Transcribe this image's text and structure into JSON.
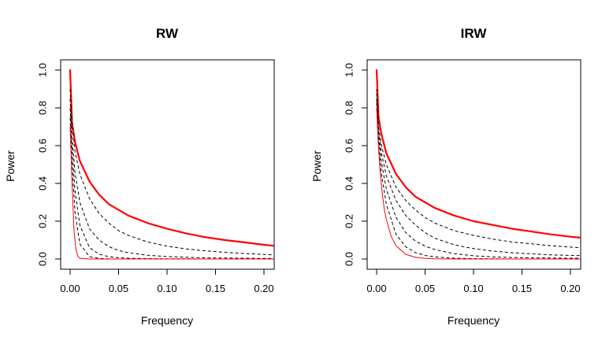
{
  "chart_data": [
    {
      "type": "line",
      "title": "RW",
      "xlabel": "Frequency",
      "ylabel": "Power",
      "xlim": [
        0,
        0.21
      ],
      "ylim": [
        0,
        1.0
      ],
      "x_ticks": [
        "0.00",
        "0.05",
        "0.10",
        "0.15",
        "0.20"
      ],
      "y_ticks": [
        "0.0",
        "0.2",
        "0.4",
        "0.6",
        "0.8",
        "1.0"
      ],
      "grid": false,
      "series": [
        {
          "color": "#ff0000",
          "line_style": "thick",
          "points": [
            [
              0.0,
              1.0
            ],
            [
              0.002,
              0.72
            ],
            [
              0.005,
              0.62
            ],
            [
              0.01,
              0.52
            ],
            [
              0.02,
              0.41
            ],
            [
              0.03,
              0.34
            ],
            [
              0.04,
              0.29
            ],
            [
              0.05,
              0.26
            ],
            [
              0.06,
              0.23
            ],
            [
              0.08,
              0.19
            ],
            [
              0.1,
              0.16
            ],
            [
              0.12,
              0.135
            ],
            [
              0.14,
              0.115
            ],
            [
              0.16,
              0.1
            ],
            [
              0.18,
              0.088
            ],
            [
              0.2,
              0.075
            ],
            [
              0.21,
              0.07
            ]
          ]
        },
        {
          "color": "#000000",
          "line_style": "dashed",
          "points": [
            [
              0.0,
              0.9
            ],
            [
              0.002,
              0.72
            ],
            [
              0.005,
              0.57
            ],
            [
              0.01,
              0.45
            ],
            [
              0.02,
              0.32
            ],
            [
              0.03,
              0.24
            ],
            [
              0.04,
              0.19
            ],
            [
              0.05,
              0.15
            ],
            [
              0.06,
              0.125
            ],
            [
              0.08,
              0.09
            ],
            [
              0.1,
              0.068
            ],
            [
              0.12,
              0.053
            ],
            [
              0.14,
              0.043
            ],
            [
              0.16,
              0.035
            ],
            [
              0.18,
              0.029
            ],
            [
              0.2,
              0.024
            ],
            [
              0.21,
              0.022
            ]
          ]
        },
        {
          "color": "#000000",
          "line_style": "dashed",
          "points": [
            [
              0.0,
              0.85
            ],
            [
              0.002,
              0.64
            ],
            [
              0.005,
              0.46
            ],
            [
              0.01,
              0.3
            ],
            [
              0.02,
              0.16
            ],
            [
              0.03,
              0.1
            ],
            [
              0.04,
              0.065
            ],
            [
              0.05,
              0.045
            ],
            [
              0.06,
              0.033
            ],
            [
              0.08,
              0.02
            ],
            [
              0.1,
              0.013
            ],
            [
              0.12,
              0.009
            ],
            [
              0.14,
              0.006
            ],
            [
              0.16,
              0.005
            ],
            [
              0.18,
              0.004
            ],
            [
              0.2,
              0.003
            ],
            [
              0.21,
              0.003
            ]
          ]
        },
        {
          "color": "#000000",
          "line_style": "dashed",
          "points": [
            [
              0.0,
              0.8
            ],
            [
              0.002,
              0.58
            ],
            [
              0.005,
              0.36
            ],
            [
              0.01,
              0.18
            ],
            [
              0.02,
              0.06
            ],
            [
              0.03,
              0.025
            ],
            [
              0.04,
              0.012
            ],
            [
              0.05,
              0.007
            ],
            [
              0.06,
              0.004
            ],
            [
              0.08,
              0.002
            ],
            [
              0.1,
              0.001
            ],
            [
              0.12,
              0.001
            ],
            [
              0.14,
              0.0
            ],
            [
              0.16,
              0.0
            ],
            [
              0.18,
              0.0
            ],
            [
              0.2,
              0.0
            ],
            [
              0.21,
              0.0
            ]
          ]
        },
        {
          "color": "#000000",
          "line_style": "dashed",
          "points": [
            [
              0.0,
              0.75
            ],
            [
              0.002,
              0.5
            ],
            [
              0.005,
              0.25
            ],
            [
              0.01,
              0.08
            ],
            [
              0.02,
              0.012
            ],
            [
              0.03,
              0.003
            ],
            [
              0.04,
              0.001
            ],
            [
              0.05,
              0.0
            ],
            [
              0.06,
              0.0
            ],
            [
              0.08,
              0.0
            ],
            [
              0.1,
              0.0
            ],
            [
              0.12,
              0.0
            ],
            [
              0.14,
              0.0
            ],
            [
              0.16,
              0.0
            ],
            [
              0.18,
              0.0
            ],
            [
              0.2,
              0.0
            ],
            [
              0.21,
              0.0
            ]
          ]
        },
        {
          "color": "#ff0000",
          "line_style": "thin",
          "points": [
            [
              0.0,
              0.7
            ],
            [
              0.002,
              0.4
            ],
            [
              0.004,
              0.15
            ],
            [
              0.006,
              0.05
            ],
            [
              0.008,
              0.015
            ],
            [
              0.01,
              0.004
            ],
            [
              0.02,
              0.0
            ],
            [
              0.05,
              0.0
            ],
            [
              0.1,
              0.0
            ],
            [
              0.15,
              0.0
            ],
            [
              0.21,
              0.0
            ]
          ]
        }
      ]
    },
    {
      "type": "line",
      "title": "IRW",
      "xlabel": "Frequency",
      "ylabel": "Power",
      "xlim": [
        0,
        0.21
      ],
      "ylim": [
        0,
        1.0
      ],
      "x_ticks": [
        "0.00",
        "0.05",
        "0.10",
        "0.15",
        "0.20"
      ],
      "y_ticks": [
        "0.0",
        "0.2",
        "0.4",
        "0.6",
        "0.8",
        "1.0"
      ],
      "grid": false,
      "series": [
        {
          "color": "#ff0000",
          "line_style": "thick",
          "points": [
            [
              0.0,
              1.0
            ],
            [
              0.002,
              0.75
            ],
            [
              0.005,
              0.66
            ],
            [
              0.01,
              0.56
            ],
            [
              0.02,
              0.45
            ],
            [
              0.03,
              0.38
            ],
            [
              0.04,
              0.33
            ],
            [
              0.05,
              0.3
            ],
            [
              0.06,
              0.27
            ],
            [
              0.08,
              0.23
            ],
            [
              0.1,
              0.2
            ],
            [
              0.12,
              0.18
            ],
            [
              0.14,
              0.16
            ],
            [
              0.16,
              0.145
            ],
            [
              0.18,
              0.13
            ],
            [
              0.2,
              0.118
            ],
            [
              0.21,
              0.113
            ]
          ]
        },
        {
          "color": "#000000",
          "line_style": "dashed",
          "points": [
            [
              0.0,
              0.9
            ],
            [
              0.002,
              0.7
            ],
            [
              0.005,
              0.6
            ],
            [
              0.01,
              0.5
            ],
            [
              0.02,
              0.38
            ],
            [
              0.03,
              0.31
            ],
            [
              0.04,
              0.26
            ],
            [
              0.05,
              0.22
            ],
            [
              0.06,
              0.19
            ],
            [
              0.08,
              0.15
            ],
            [
              0.1,
              0.125
            ],
            [
              0.12,
              0.105
            ],
            [
              0.14,
              0.09
            ],
            [
              0.16,
              0.08
            ],
            [
              0.18,
              0.07
            ],
            [
              0.2,
              0.063
            ],
            [
              0.21,
              0.06
            ]
          ]
        },
        {
          "color": "#000000",
          "line_style": "dashed",
          "points": [
            [
              0.0,
              0.88
            ],
            [
              0.002,
              0.68
            ],
            [
              0.005,
              0.56
            ],
            [
              0.01,
              0.44
            ],
            [
              0.02,
              0.31
            ],
            [
              0.03,
              0.23
            ],
            [
              0.04,
              0.18
            ],
            [
              0.05,
              0.14
            ],
            [
              0.06,
              0.11
            ],
            [
              0.08,
              0.075
            ],
            [
              0.1,
              0.055
            ],
            [
              0.12,
              0.042
            ],
            [
              0.14,
              0.033
            ],
            [
              0.16,
              0.027
            ],
            [
              0.18,
              0.022
            ],
            [
              0.2,
              0.019
            ],
            [
              0.21,
              0.018
            ]
          ]
        },
        {
          "color": "#000000",
          "line_style": "dashed",
          "points": [
            [
              0.0,
              0.85
            ],
            [
              0.002,
              0.65
            ],
            [
              0.005,
              0.51
            ],
            [
              0.01,
              0.37
            ],
            [
              0.02,
              0.22
            ],
            [
              0.03,
              0.14
            ],
            [
              0.04,
              0.095
            ],
            [
              0.05,
              0.068
            ],
            [
              0.06,
              0.05
            ],
            [
              0.08,
              0.028
            ],
            [
              0.1,
              0.017
            ],
            [
              0.12,
              0.011
            ],
            [
              0.14,
              0.008
            ],
            [
              0.16,
              0.006
            ],
            [
              0.18,
              0.005
            ],
            [
              0.2,
              0.004
            ],
            [
              0.21,
              0.004
            ]
          ]
        },
        {
          "color": "#000000",
          "line_style": "dashed",
          "points": [
            [
              0.0,
              0.83
            ],
            [
              0.002,
              0.62
            ],
            [
              0.005,
              0.45
            ],
            [
              0.01,
              0.29
            ],
            [
              0.02,
              0.13
            ],
            [
              0.03,
              0.065
            ],
            [
              0.04,
              0.034
            ],
            [
              0.05,
              0.019
            ],
            [
              0.06,
              0.011
            ],
            [
              0.08,
              0.004
            ],
            [
              0.1,
              0.002
            ],
            [
              0.12,
              0.001
            ],
            [
              0.14,
              0.0
            ],
            [
              0.16,
              0.0
            ],
            [
              0.18,
              0.0
            ],
            [
              0.2,
              0.0
            ],
            [
              0.21,
              0.0
            ]
          ]
        },
        {
          "color": "#ff0000",
          "line_style": "thin",
          "points": [
            [
              0.0,
              0.8
            ],
            [
              0.002,
              0.58
            ],
            [
              0.004,
              0.44
            ],
            [
              0.006,
              0.34
            ],
            [
              0.008,
              0.26
            ],
            [
              0.01,
              0.21
            ],
            [
              0.015,
              0.12
            ],
            [
              0.02,
              0.07
            ],
            [
              0.03,
              0.025
            ],
            [
              0.04,
              0.009
            ],
            [
              0.05,
              0.003
            ],
            [
              0.06,
              0.001
            ],
            [
              0.08,
              0.0
            ],
            [
              0.1,
              0.0
            ],
            [
              0.15,
              0.0
            ],
            [
              0.21,
              0.0
            ]
          ]
        }
      ]
    }
  ]
}
